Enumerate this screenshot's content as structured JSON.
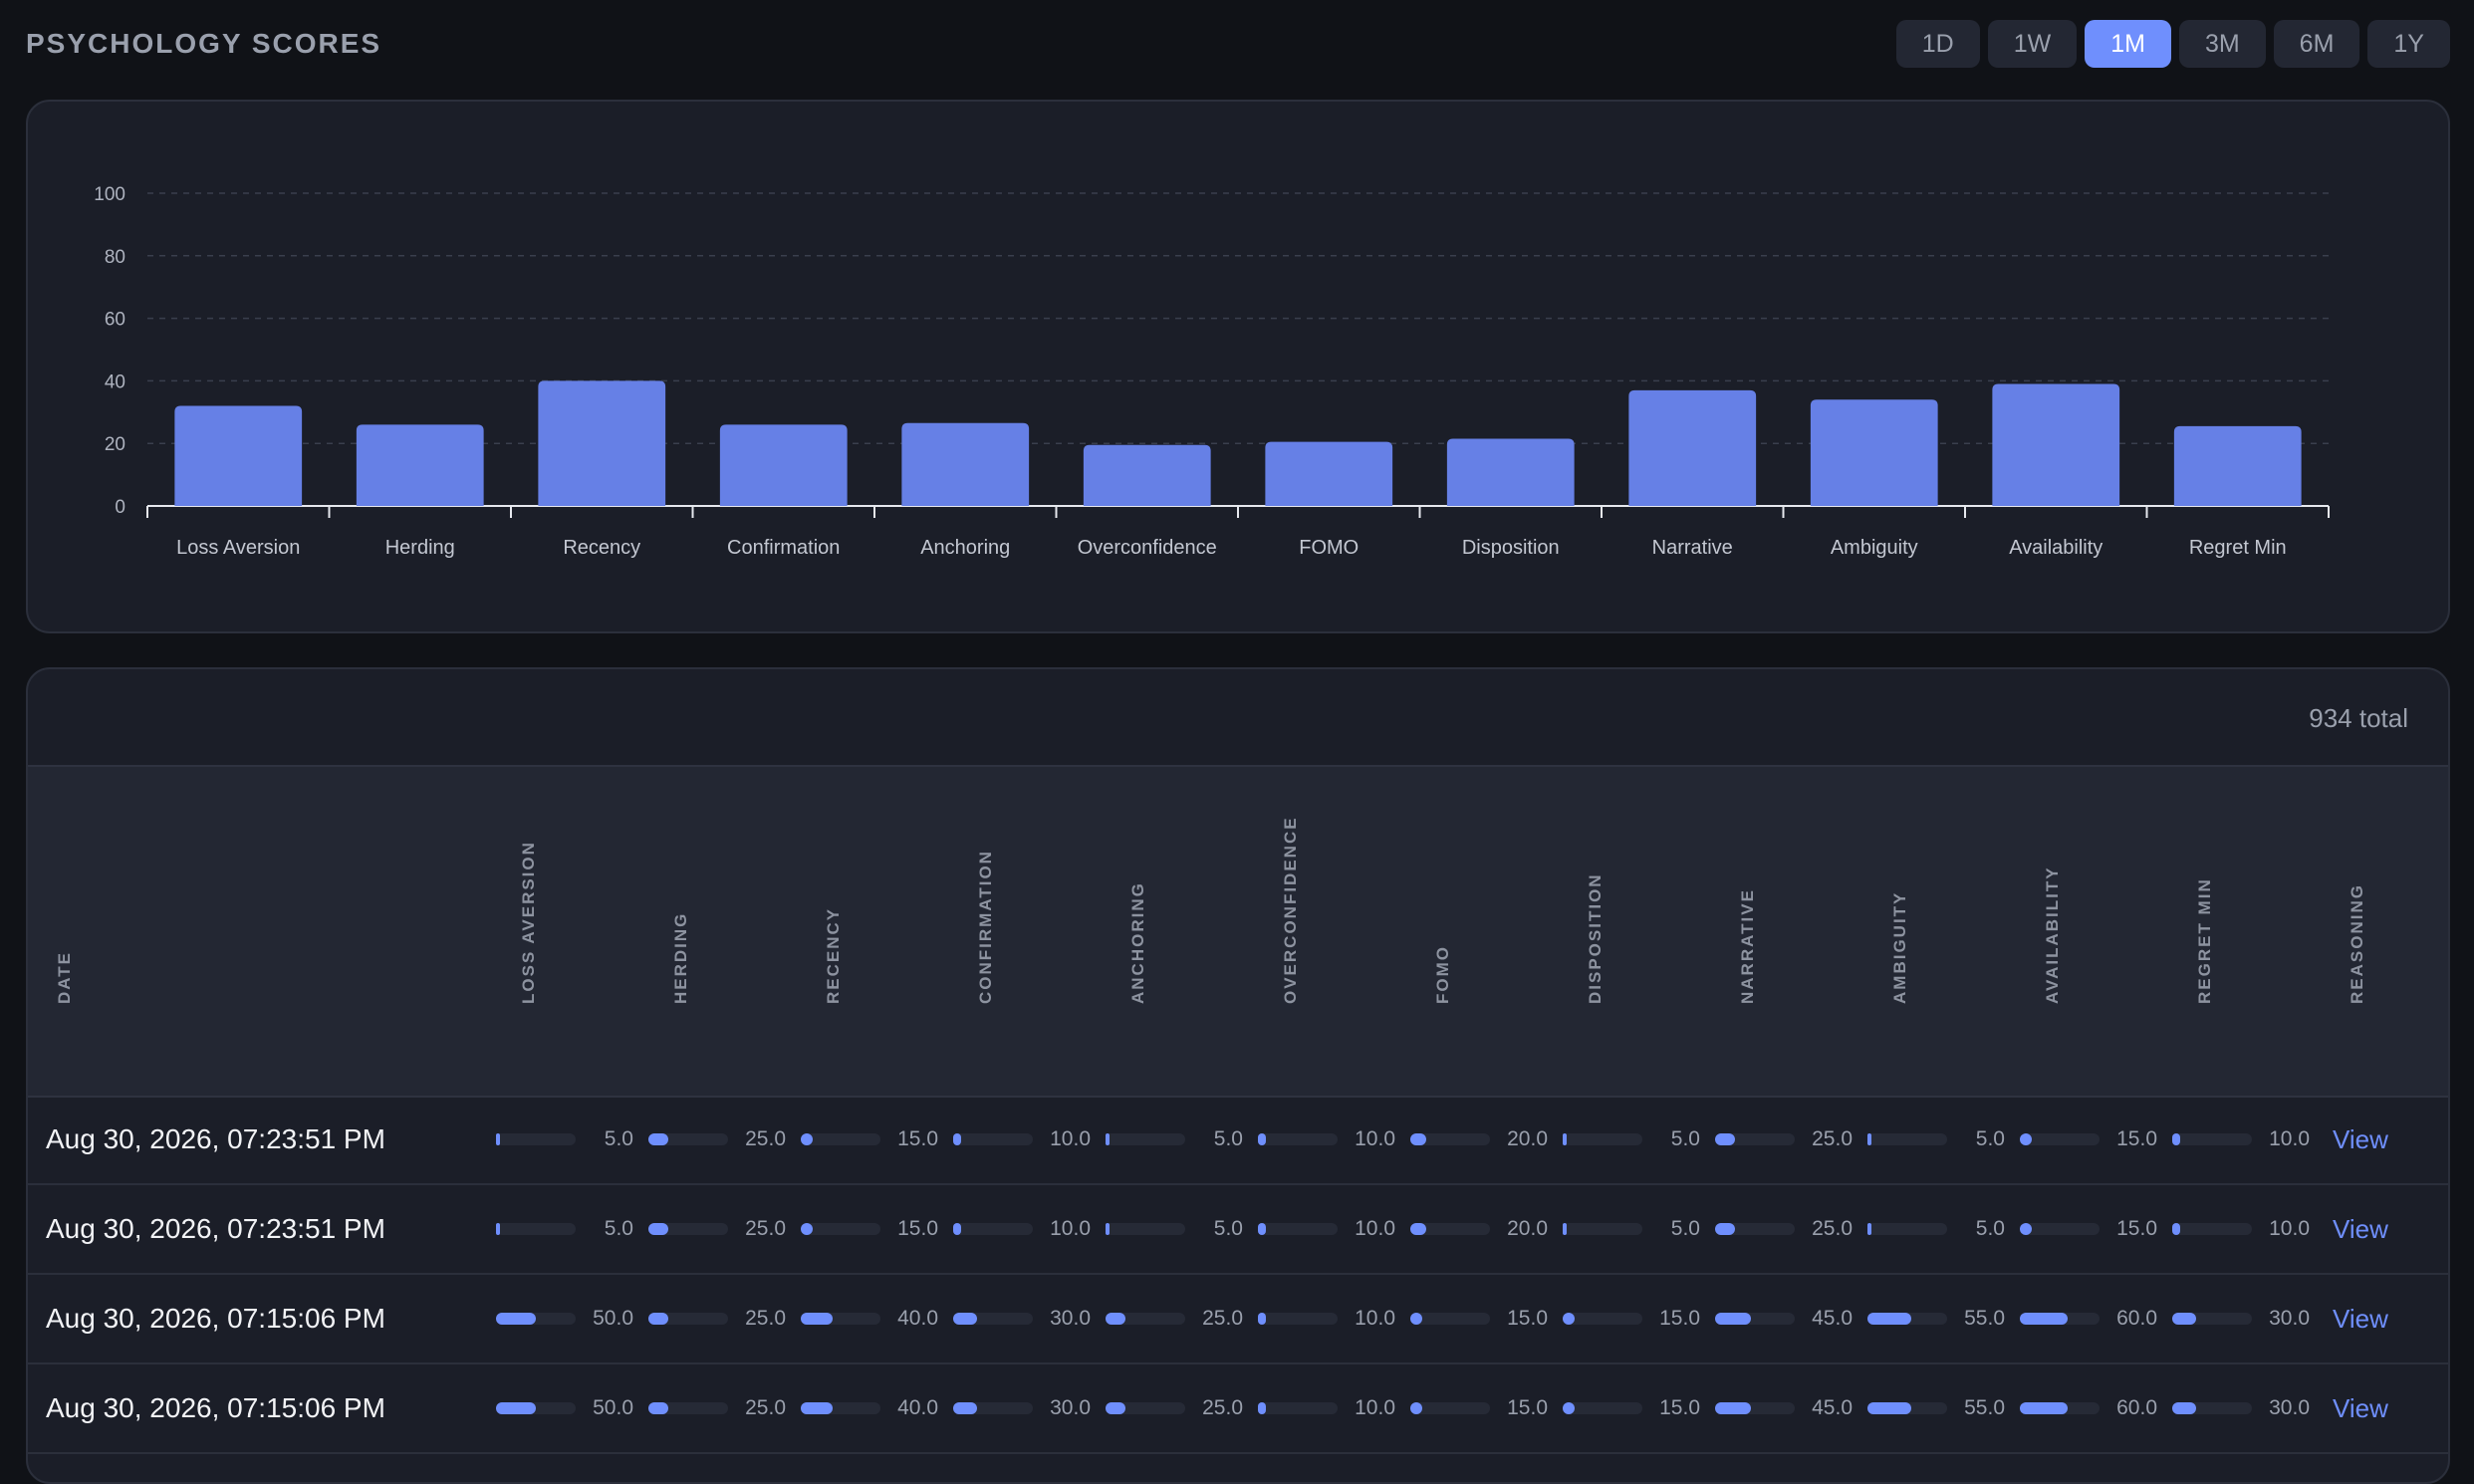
{
  "page": {
    "title": "PSYCHOLOGY SCORES"
  },
  "ranges": [
    "1D",
    "1W",
    "1M",
    "3M",
    "6M",
    "1Y"
  ],
  "active_range": "1M",
  "colors": {
    "accent": "#6f8ffd",
    "bar": "#6680e6",
    "card": "#1b1e28"
  },
  "chart_data": {
    "type": "bar",
    "categories": [
      "Loss Aversion",
      "Herding",
      "Recency",
      "Confirmation",
      "Anchoring",
      "Overconfidence",
      "FOMO",
      "Disposition",
      "Narrative",
      "Ambiguity",
      "Availability",
      "Regret Min"
    ],
    "values": [
      32,
      26,
      40,
      26,
      26.5,
      19.5,
      20.5,
      21.5,
      37,
      34,
      39,
      25.5
    ],
    "yticks": [
      0,
      20,
      40,
      60,
      80,
      100
    ],
    "ylim": [
      0,
      100
    ],
    "grid": true,
    "title": "",
    "xlabel": "",
    "ylabel": ""
  },
  "table": {
    "total": "934 total",
    "headers": [
      "DATE",
      "LOSS AVERSION",
      "HERDING",
      "RECENCY",
      "CONFIRMATION",
      "ANCHORING",
      "OVERCONFIDENCE",
      "FOMO",
      "DISPOSITION",
      "NARRATIVE",
      "AMBIGUITY",
      "AVAILABILITY",
      "REGRET MIN",
      "REASONING"
    ],
    "rows": [
      {
        "date": "Aug 30, 2026, 07:23:51 PM",
        "scores": [
          "5.0",
          "25.0",
          "15.0",
          "10.0",
          "5.0",
          "10.0",
          "20.0",
          "5.0",
          "25.0",
          "5.0",
          "15.0",
          "10.0"
        ],
        "action": "View"
      },
      {
        "date": "Aug 30, 2026, 07:23:51 PM",
        "scores": [
          "5.0",
          "25.0",
          "15.0",
          "10.0",
          "5.0",
          "10.0",
          "20.0",
          "5.0",
          "25.0",
          "5.0",
          "15.0",
          "10.0"
        ],
        "action": "View"
      },
      {
        "date": "Aug 30, 2026, 07:15:06 PM",
        "scores": [
          "50.0",
          "25.0",
          "40.0",
          "30.0",
          "25.0",
          "10.0",
          "15.0",
          "15.0",
          "45.0",
          "55.0",
          "60.0",
          "30.0"
        ],
        "action": "View"
      },
      {
        "date": "Aug 30, 2026, 07:15:06 PM",
        "scores": [
          "50.0",
          "25.0",
          "40.0",
          "30.0",
          "25.0",
          "10.0",
          "15.0",
          "15.0",
          "45.0",
          "55.0",
          "60.0",
          "30.0"
        ],
        "action": "View"
      }
    ]
  }
}
